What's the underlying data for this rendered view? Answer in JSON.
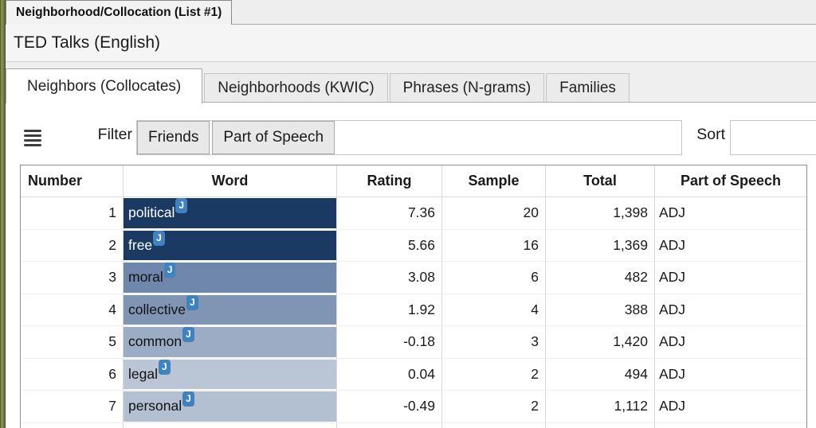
{
  "window": {
    "tab_title": "Neighborhood/Collocation (List #1)",
    "corpus_title": "TED Talks (English)"
  },
  "tabs": [
    {
      "label": "Neighbors (Collocates)",
      "active": true
    },
    {
      "label": "Neighborhoods (KWIC)",
      "active": false
    },
    {
      "label": "Phrases (N-grams)",
      "active": false
    },
    {
      "label": "Families",
      "active": false
    }
  ],
  "toolbar": {
    "menu_icon": "hamburger-icon",
    "filter_label": "Filter",
    "filter_buttons": [
      {
        "label": "Friends"
      },
      {
        "label": "Part of Speech"
      }
    ],
    "filter_input_value": "",
    "sort_label": "Sort",
    "sort_input_value": ""
  },
  "table": {
    "columns": [
      "Number",
      "Word",
      "Rating",
      "Sample",
      "Total",
      "Part of Speech"
    ],
    "rows": [
      {
        "number": "1",
        "word": "political",
        "tag": "J",
        "rating": "7.36",
        "sample": "20",
        "total": "1,398",
        "pos": "ADJ",
        "highlight": "#1b3a63",
        "text": "#ffffff"
      },
      {
        "number": "2",
        "word": "free",
        "tag": "J",
        "rating": "5.66",
        "sample": "16",
        "total": "1,369",
        "pos": "ADJ",
        "highlight": "#1b3a63",
        "text": "#ffffff"
      },
      {
        "number": "3",
        "word": "moral",
        "tag": "J",
        "rating": "3.08",
        "sample": "6",
        "total": "482",
        "pos": "ADJ",
        "highlight": "#6e87aa",
        "text": "#111111"
      },
      {
        "number": "4",
        "word": "collective",
        "tag": "J",
        "rating": "1.92",
        "sample": "4",
        "total": "388",
        "pos": "ADJ",
        "highlight": "#8095b3",
        "text": "#111111"
      },
      {
        "number": "5",
        "word": "common",
        "tag": "J",
        "rating": "-0.18",
        "sample": "3",
        "total": "1,420",
        "pos": "ADJ",
        "highlight": "#9cacc4",
        "text": "#111111"
      },
      {
        "number": "6",
        "word": "legal",
        "tag": "J",
        "rating": "0.04",
        "sample": "2",
        "total": "494",
        "pos": "ADJ",
        "highlight": "#bac5d5",
        "text": "#111111"
      },
      {
        "number": "7",
        "word": "personal",
        "tag": "J",
        "rating": "-0.49",
        "sample": "2",
        "total": "1,112",
        "pos": "ADJ",
        "highlight": "#b2c0d2",
        "text": "#111111"
      }
    ]
  },
  "colors": {
    "badge_blue": "#3f82bd",
    "highlight_dark": "#1b3a63",
    "left_edge_olive": "#68743a"
  }
}
